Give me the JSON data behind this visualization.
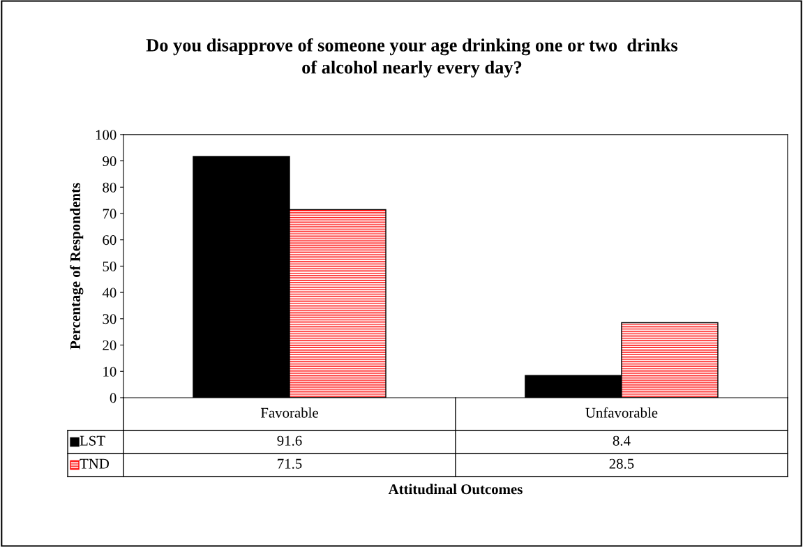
{
  "chart_data": {
    "type": "bar",
    "title": "Do you disapprove of someone your age drinking one or two  drinks\nof alcohol nearly every day?",
    "annotations": [
      "Attitudinal Outcomes"
    ],
    "legend": "bottom left",
    "ylabel": "Percentage of Respondents",
    "categories": [
      "Favorable",
      "Unfavorable"
    ],
    "series": [
      {
        "name": "LST",
        "color": "#000000",
        "values": [
          91.6,
          8.4
        ]
      },
      {
        "name": "TND",
        "color": "#ff0000",
        "values": [
          71.5,
          28.5
        ]
      }
    ],
    "ylim": [
      0,
      100
    ],
    "yticks": [
      0,
      10,
      20,
      30,
      40,
      50,
      60,
      70,
      80,
      90,
      100
    ],
    "grid": false,
    "data_labels": true
  }
}
